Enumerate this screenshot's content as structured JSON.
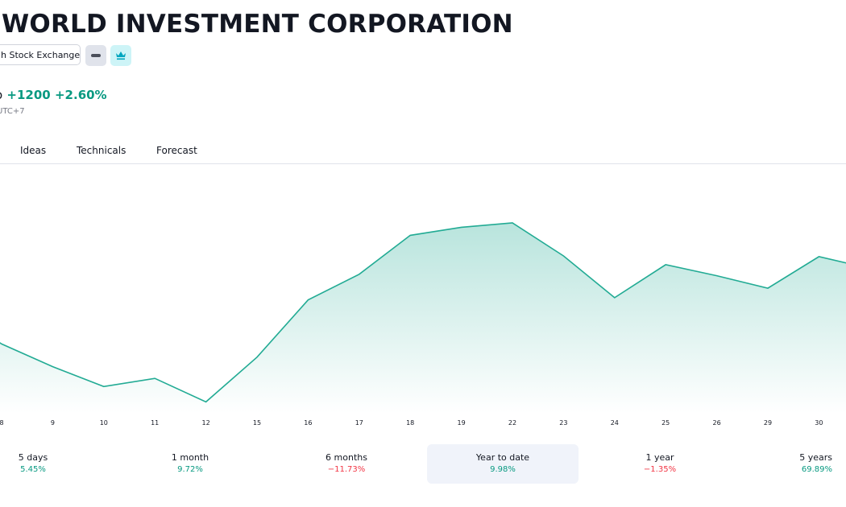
{
  "header": {
    "title": "WORLD INVESTMENT CORPORATION",
    "exchange": "h Stock Exchange",
    "price_cut": "o",
    "change_abs": "+1200",
    "change_pct": "+2.60%",
    "timezone": "UTC+7",
    "icons": [
      "minus-icon",
      "crown-icon"
    ]
  },
  "tabs": [
    "Ideas",
    "Technicals",
    "Forecast"
  ],
  "chart_data": {
    "type": "area",
    "x": [
      "8",
      "9",
      "10",
      "11",
      "12",
      "15",
      "16",
      "17",
      "18",
      "19",
      "22",
      "23",
      "24",
      "25",
      "26",
      "29",
      "30"
    ],
    "series": [
      {
        "values": [
          37.5,
          34.4,
          31.7,
          32.8,
          29.6,
          35.7,
          43.5,
          47.0,
          52.3,
          53.4,
          54.0,
          49.5,
          43.8,
          48.3,
          46.8,
          45.1,
          49.4
        ]
      }
    ],
    "ylim": [
      28,
      62
    ],
    "grid": false,
    "line_color": "#22ab94",
    "fill_color": "#22ab94"
  },
  "ranges": [
    {
      "label": "5 days",
      "value": "5.45%",
      "sign": "pos"
    },
    {
      "label": "1 month",
      "value": "9.72%",
      "sign": "pos"
    },
    {
      "label": "6 months",
      "value": "−11.73%",
      "sign": "neg"
    },
    {
      "label": "Year to date",
      "value": "9.98%",
      "sign": "pos",
      "active": true
    },
    {
      "label": "1 year",
      "value": "−1.35%",
      "sign": "neg"
    },
    {
      "label": "5 years",
      "value": "69.89%",
      "sign": "pos"
    }
  ]
}
